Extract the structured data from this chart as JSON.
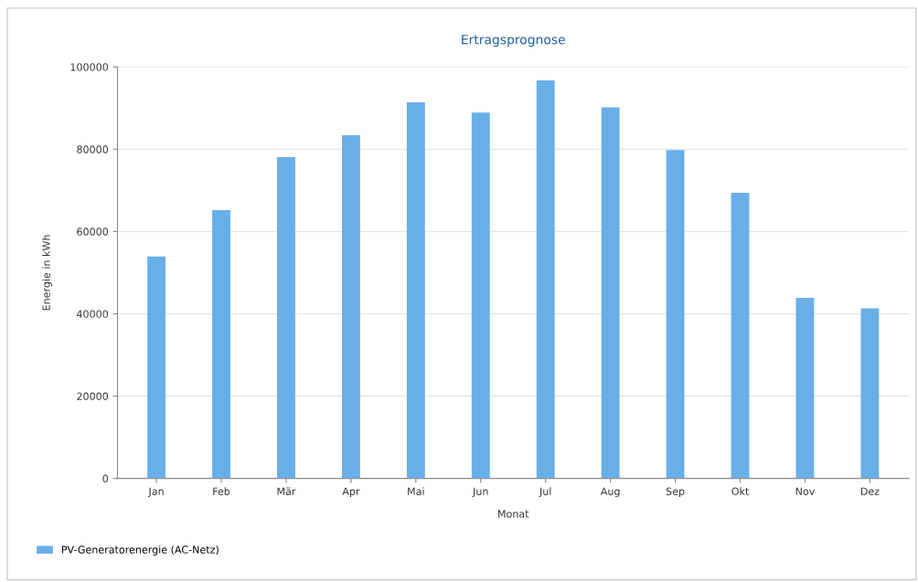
{
  "chart_data": {
    "type": "bar",
    "title": "Ertragsprognose",
    "xlabel": "Monat",
    "ylabel": "Energie in kWh",
    "categories": [
      "Jan",
      "Feb",
      "Mär",
      "Apr",
      "Mai",
      "Jun",
      "Jul",
      "Aug",
      "Sep",
      "Okt",
      "Nov",
      "Dez"
    ],
    "series": [
      {
        "name": "PV-Generatorenergie (AC-Netz)",
        "color": "#6aaee8",
        "values": [
          53900,
          65200,
          78100,
          83400,
          91400,
          88900,
          96700,
          90200,
          79800,
          69400,
          43900,
          41300
        ]
      }
    ],
    "ylim": [
      0,
      100000
    ],
    "yticks": [
      0,
      20000,
      40000,
      60000,
      80000,
      100000
    ],
    "grid": "y",
    "legend": "bottom left"
  }
}
